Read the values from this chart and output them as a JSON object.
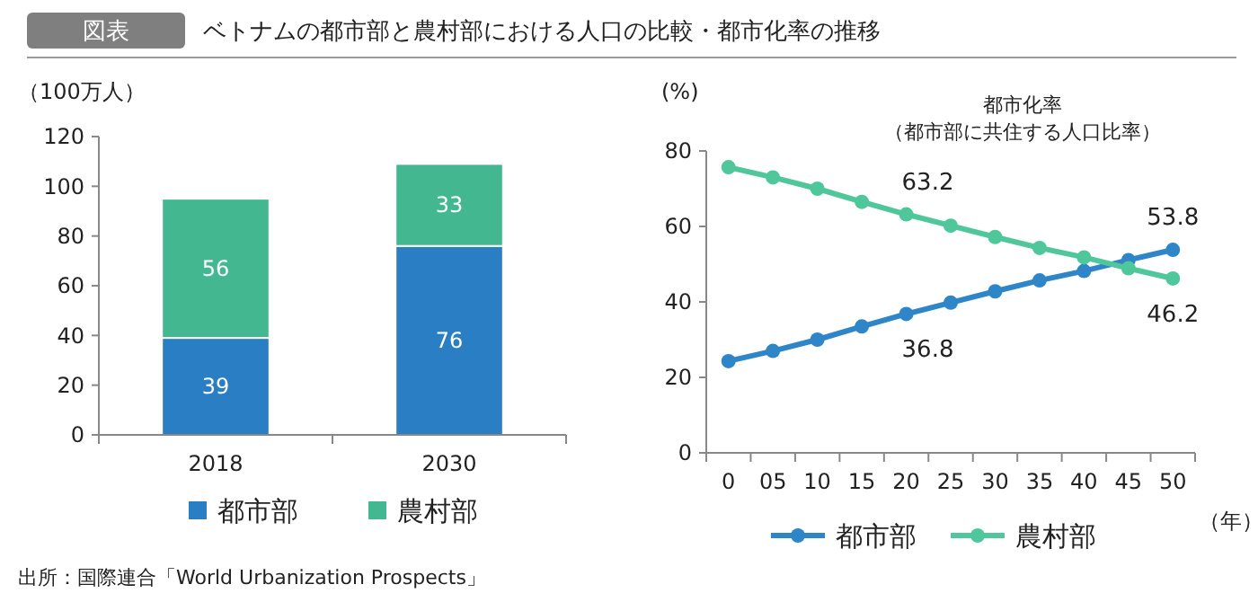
{
  "chart_data": [
    {
      "type": "bar",
      "title": "ベトナムの都市部と農村部における人口の比較・都市化率の推移",
      "annotations": [
        "図表",
        "出所：国際連合「World Urbanization Prospects」"
      ],
      "ylabel": "（100万人）",
      "categories": [
        "2018",
        "2030"
      ],
      "stacked": true,
      "data_labels": true,
      "legend": "bottom",
      "ylim": [
        0,
        120
      ],
      "yticks": [
        0,
        20,
        40,
        60,
        80,
        100,
        120
      ],
      "series": [
        {
          "name": "都市部",
          "color": "#2a7fc4",
          "values": [
            39,
            76
          ]
        },
        {
          "name": "農村部",
          "color": "#43b890",
          "values": [
            56,
            33
          ]
        }
      ]
    },
    {
      "type": "line",
      "title": "都市化率",
      "subtitle": "（都市部に共住する人口比率）",
      "ylabel": "(%)",
      "xlabel": "（年）",
      "categories": [
        "0",
        "05",
        "10",
        "15",
        "20",
        "25",
        "30",
        "35",
        "40",
        "45",
        "50"
      ],
      "legend": "bottom",
      "marker": "circle",
      "ylim": [
        0,
        80
      ],
      "yticks": [
        0,
        20,
        40,
        60,
        80
      ],
      "series": [
        {
          "name": "都市部",
          "color": "#2e86c8",
          "values": [
            24.3,
            27,
            30,
            33.5,
            36.8,
            39.8,
            42.8,
            45.7,
            48.2,
            51.1,
            53.8
          ],
          "value_labels": [
            null,
            null,
            null,
            null,
            "36.8",
            null,
            null,
            null,
            null,
            null,
            "53.8"
          ]
        },
        {
          "name": "農村部",
          "color": "#4fc79a",
          "values": [
            75.7,
            73,
            70,
            66.5,
            63.2,
            60.2,
            57.2,
            54.3,
            51.8,
            48.9,
            46.2
          ],
          "value_labels": [
            null,
            null,
            null,
            null,
            "63.2",
            null,
            null,
            null,
            null,
            null,
            "46.2"
          ]
        }
      ]
    }
  ]
}
